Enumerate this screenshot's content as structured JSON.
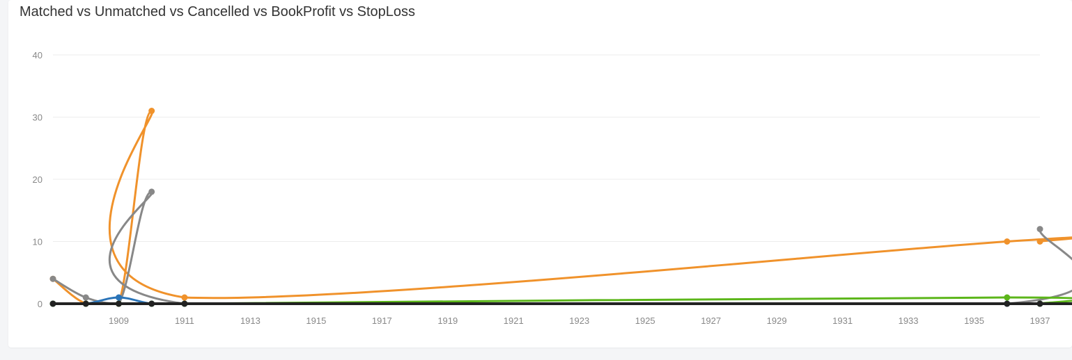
{
  "chart_data": {
    "type": "line",
    "title": "Matched vs Unmatched vs Cancelled vs BookProfit vs StopLoss",
    "xlabel": "",
    "ylabel": "",
    "ylim": [
      0,
      40
    ],
    "xlim": [
      1907,
      1937
    ],
    "y_ticks": [
      0,
      10,
      20,
      30,
      40
    ],
    "x_ticks": [
      1909,
      1911,
      1913,
      1915,
      1917,
      1919,
      1921,
      1923,
      1925,
      1927,
      1929,
      1931,
      1933,
      1935,
      1937
    ],
    "grid": true,
    "legend": "none",
    "series": [
      {
        "color": "#f0922b",
        "x": [
          1907,
          1908,
          1909,
          1910,
          1911,
          1936,
          1937
        ],
        "values": [
          4,
          0,
          0,
          31,
          1,
          10,
          10
        ]
      },
      {
        "color": "#888888",
        "x": [
          1907,
          1908,
          1909,
          1910,
          1911,
          1936,
          1937
        ],
        "values": [
          4,
          1,
          0,
          18,
          0,
          0,
          12
        ]
      },
      {
        "color": "#2a74b8",
        "x": [
          1907,
          1908,
          1909,
          1910,
          1911,
          1936,
          1937
        ],
        "values": [
          0,
          0,
          1,
          0,
          0,
          0,
          0
        ]
      },
      {
        "color": "#5cb61a",
        "x": [
          1907,
          1908,
          1909,
          1910,
          1911,
          1936,
          1937
        ],
        "values": [
          0,
          0,
          0,
          0,
          0,
          1,
          0
        ]
      },
      {
        "color": "#222222",
        "x": [
          1907,
          1908,
          1909,
          1910,
          1911,
          1936,
          1937
        ],
        "values": [
          0,
          0,
          0,
          0,
          0,
          0,
          0
        ]
      }
    ]
  }
}
